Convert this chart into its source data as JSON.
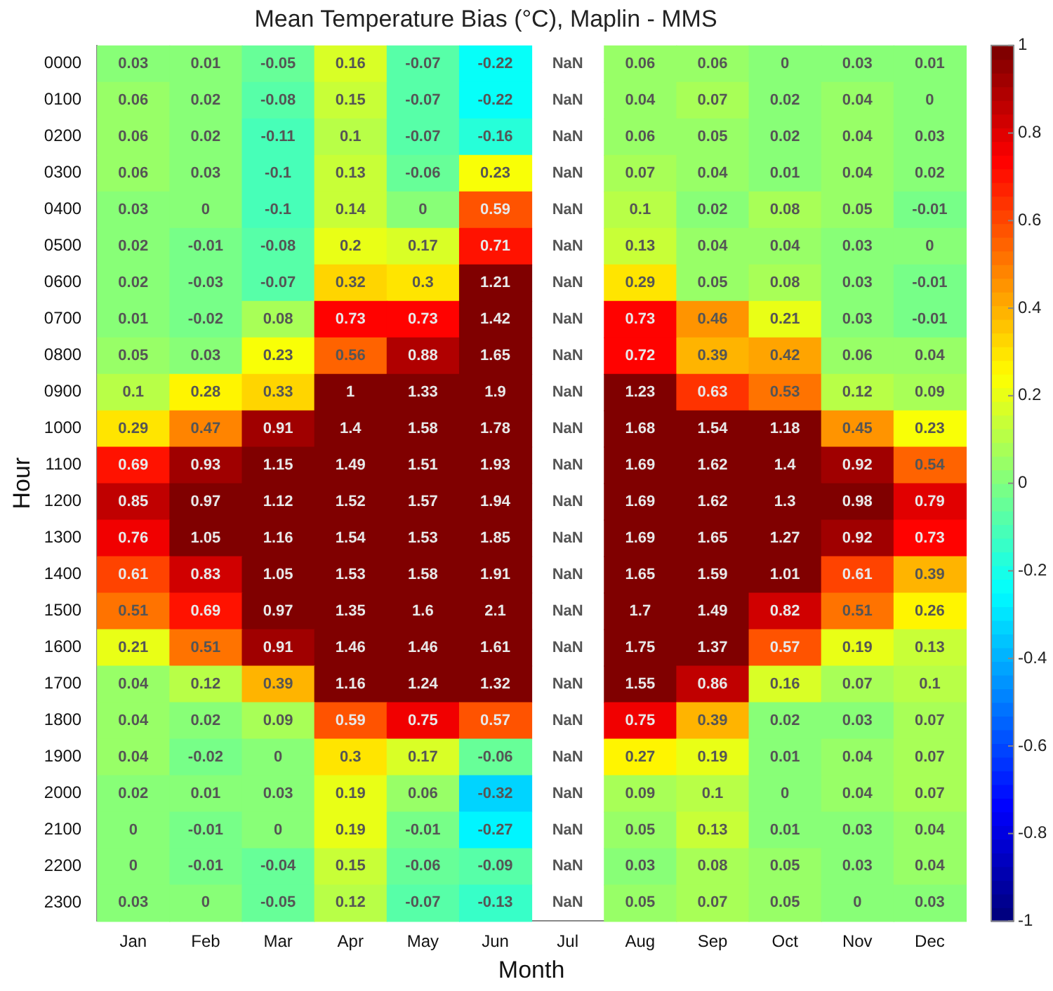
{
  "chart_data": {
    "type": "heatmap",
    "title": "Mean Temperature Bias (°C), Maplin - MMS",
    "xlabel": "Month",
    "ylabel": "Hour",
    "categories": [
      "Jan",
      "Feb",
      "Mar",
      "Apr",
      "May",
      "Jun",
      "Jul",
      "Aug",
      "Sep",
      "Oct",
      "Nov",
      "Dec"
    ],
    "y_categories": [
      "0000",
      "0100",
      "0200",
      "0300",
      "0400",
      "0500",
      "0600",
      "0700",
      "0800",
      "0900",
      "1000",
      "1100",
      "1200",
      "1300",
      "1400",
      "1500",
      "1600",
      "1700",
      "1800",
      "1900",
      "2000",
      "2100",
      "2200",
      "2300"
    ],
    "cells": [
      [
        0.03,
        0.01,
        -0.05,
        0.16,
        -0.07,
        -0.22,
        null,
        0.06,
        0.06,
        0,
        0.03,
        0.01
      ],
      [
        0.06,
        0.02,
        -0.08,
        0.15,
        -0.07,
        -0.22,
        null,
        0.04,
        0.07,
        0.02,
        0.04,
        0
      ],
      [
        0.06,
        0.02,
        -0.11,
        0.1,
        -0.07,
        -0.16,
        null,
        0.06,
        0.05,
        0.02,
        0.04,
        0.03
      ],
      [
        0.06,
        0.03,
        -0.1,
        0.13,
        -0.06,
        0.23,
        null,
        0.07,
        0.04,
        0.01,
        0.04,
        0.02
      ],
      [
        0.03,
        0,
        -0.1,
        0.14,
        0,
        0.59,
        null,
        0.1,
        0.02,
        0.08,
        0.05,
        -0.01
      ],
      [
        0.02,
        -0.01,
        -0.08,
        0.2,
        0.17,
        0.71,
        null,
        0.13,
        0.04,
        0.04,
        0.03,
        0
      ],
      [
        0.02,
        -0.03,
        -0.07,
        0.32,
        0.3,
        1.21,
        null,
        0.29,
        0.05,
        0.08,
        0.03,
        -0.01
      ],
      [
        0.01,
        -0.02,
        0.08,
        0.73,
        0.73,
        1.42,
        null,
        0.73,
        0.46,
        0.21,
        0.03,
        -0.01
      ],
      [
        0.05,
        0.03,
        0.23,
        0.56,
        0.88,
        1.65,
        null,
        0.72,
        0.39,
        0.42,
        0.06,
        0.04
      ],
      [
        0.1,
        0.28,
        0.33,
        1,
        1.33,
        1.9,
        null,
        1.23,
        0.63,
        0.53,
        0.12,
        0.09
      ],
      [
        0.29,
        0.47,
        0.91,
        1.4,
        1.58,
        1.78,
        null,
        1.68,
        1.54,
        1.18,
        0.45,
        0.23
      ],
      [
        0.69,
        0.93,
        1.15,
        1.49,
        1.51,
        1.93,
        null,
        1.69,
        1.62,
        1.4,
        0.92,
        0.54
      ],
      [
        0.85,
        0.97,
        1.12,
        1.52,
        1.57,
        1.94,
        null,
        1.69,
        1.62,
        1.3,
        0.98,
        0.79
      ],
      [
        0.76,
        1.05,
        1.16,
        1.54,
        1.53,
        1.85,
        null,
        1.69,
        1.65,
        1.27,
        0.92,
        0.73
      ],
      [
        0.61,
        0.83,
        1.05,
        1.53,
        1.58,
        1.91,
        null,
        1.65,
        1.59,
        1.01,
        0.61,
        0.39
      ],
      [
        0.51,
        0.69,
        0.97,
        1.35,
        1.6,
        2.1,
        null,
        1.7,
        1.49,
        0.82,
        0.51,
        0.26
      ],
      [
        0.21,
        0.51,
        0.91,
        1.46,
        1.46,
        1.61,
        null,
        1.75,
        1.37,
        0.57,
        0.19,
        0.13
      ],
      [
        0.04,
        0.12,
        0.39,
        1.16,
        1.24,
        1.32,
        null,
        1.55,
        0.86,
        0.16,
        0.07,
        0.1
      ],
      [
        0.04,
        0.02,
        0.09,
        0.59,
        0.75,
        0.57,
        null,
        0.75,
        0.39,
        0.02,
        0.03,
        0.07
      ],
      [
        0.04,
        -0.02,
        0,
        0.3,
        0.17,
        -0.06,
        null,
        0.27,
        0.19,
        0.01,
        0.04,
        0.07
      ],
      [
        0.02,
        0.01,
        0.03,
        0.19,
        0.06,
        -0.32,
        null,
        0.09,
        0.1,
        0,
        0.04,
        0.07
      ],
      [
        0,
        -0.01,
        0,
        0.19,
        -0.01,
        -0.27,
        null,
        0.05,
        0.13,
        0.01,
        0.03,
        0.04
      ],
      [
        0,
        -0.01,
        -0.04,
        0.15,
        -0.06,
        -0.09,
        null,
        0.03,
        0.08,
        0.05,
        0.03,
        0.04
      ],
      [
        0.03,
        0,
        -0.05,
        0.12,
        -0.07,
        -0.13,
        null,
        0.05,
        0.07,
        0.05,
        0,
        0.03
      ]
    ],
    "cell_labels": [
      [
        "0.03",
        "0.01",
        "-0.05",
        "0.16",
        "-0.07",
        "-0.22",
        "NaN",
        "0.06",
        "0.06",
        "0",
        "0.03",
        "0.01"
      ],
      [
        "0.06",
        "0.02",
        "-0.08",
        "0.15",
        "-0.07",
        "-0.22",
        "NaN",
        "0.04",
        "0.07",
        "0.02",
        "0.04",
        "0"
      ],
      [
        "0.06",
        "0.02",
        "-0.11",
        "0.1",
        "-0.07",
        "-0.16",
        "NaN",
        "0.06",
        "0.05",
        "0.02",
        "0.04",
        "0.03"
      ],
      [
        "0.06",
        "0.03",
        "-0.1",
        "0.13",
        "-0.06",
        "0.23",
        "NaN",
        "0.07",
        "0.04",
        "0.01",
        "0.04",
        "0.02"
      ],
      [
        "0.03",
        "0",
        "-0.1",
        "0.14",
        "0",
        "0.59",
        "NaN",
        "0.1",
        "0.02",
        "0.08",
        "0.05",
        "-0.01"
      ],
      [
        "0.02",
        "-0.01",
        "-0.08",
        "0.2",
        "0.17",
        "0.71",
        "NaN",
        "0.13",
        "0.04",
        "0.04",
        "0.03",
        "0"
      ],
      [
        "0.02",
        "-0.03",
        "-0.07",
        "0.32",
        "0.3",
        "1.21",
        "NaN",
        "0.29",
        "0.05",
        "0.08",
        "0.03",
        "-0.01"
      ],
      [
        "0.01",
        "-0.02",
        "0.08",
        "0.73",
        "0.73",
        "1.42",
        "NaN",
        "0.73",
        "0.46",
        "0.21",
        "0.03",
        "-0.01"
      ],
      [
        "0.05",
        "0.03",
        "0.23",
        "0.56",
        "0.88",
        "1.65",
        "NaN",
        "0.72",
        "0.39",
        "0.42",
        "0.06",
        "0.04"
      ],
      [
        "0.1",
        "0.28",
        "0.33",
        "1",
        "1.33",
        "1.9",
        "NaN",
        "1.23",
        "0.63",
        "0.53",
        "0.12",
        "0.09"
      ],
      [
        "0.29",
        "0.47",
        "0.91",
        "1.4",
        "1.58",
        "1.78",
        "NaN",
        "1.68",
        "1.54",
        "1.18",
        "0.45",
        "0.23"
      ],
      [
        "0.69",
        "0.93",
        "1.15",
        "1.49",
        "1.51",
        "1.93",
        "NaN",
        "1.69",
        "1.62",
        "1.4",
        "0.92",
        "0.54"
      ],
      [
        "0.85",
        "0.97",
        "1.12",
        "1.52",
        "1.57",
        "1.94",
        "NaN",
        "1.69",
        "1.62",
        "1.3",
        "0.98",
        "0.79"
      ],
      [
        "0.76",
        "1.05",
        "1.16",
        "1.54",
        "1.53",
        "1.85",
        "NaN",
        "1.69",
        "1.65",
        "1.27",
        "0.92",
        "0.73"
      ],
      [
        "0.61",
        "0.83",
        "1.05",
        "1.53",
        "1.58",
        "1.91",
        "NaN",
        "1.65",
        "1.59",
        "1.01",
        "0.61",
        "0.39"
      ],
      [
        "0.51",
        "0.69",
        "0.97",
        "1.35",
        "1.6",
        "2.1",
        "NaN",
        "1.7",
        "1.49",
        "0.82",
        "0.51",
        "0.26"
      ],
      [
        "0.21",
        "0.51",
        "0.91",
        "1.46",
        "1.46",
        "1.61",
        "NaN",
        "1.75",
        "1.37",
        "0.57",
        "0.19",
        "0.13"
      ],
      [
        "0.04",
        "0.12",
        "0.39",
        "1.16",
        "1.24",
        "1.32",
        "NaN",
        "1.55",
        "0.86",
        "0.16",
        "0.07",
        "0.1"
      ],
      [
        "0.04",
        "0.02",
        "0.09",
        "0.59",
        "0.75",
        "0.57",
        "NaN",
        "0.75",
        "0.39",
        "0.02",
        "0.03",
        "0.07"
      ],
      [
        "0.04",
        "-0.02",
        "0",
        "0.3",
        "0.17",
        "-0.06",
        "NaN",
        "0.27",
        "0.19",
        "0.01",
        "0.04",
        "0.07"
      ],
      [
        "0.02",
        "0.01",
        "0.03",
        "0.19",
        "0.06",
        "-0.32",
        "NaN",
        "0.09",
        "0.1",
        "0",
        "0.04",
        "0.07"
      ],
      [
        "0",
        "-0.01",
        "0",
        "0.19",
        "-0.01",
        "-0.27",
        "NaN",
        "0.05",
        "0.13",
        "0.01",
        "0.03",
        "0.04"
      ],
      [
        "0",
        "-0.01",
        "-0.04",
        "0.15",
        "-0.06",
        "-0.09",
        "NaN",
        "0.03",
        "0.08",
        "0.05",
        "0.03",
        "0.04"
      ],
      [
        "0.03",
        "0",
        "-0.05",
        "0.12",
        "-0.07",
        "-0.13",
        "NaN",
        "0.05",
        "0.07",
        "0.05",
        "0",
        "0.03"
      ]
    ],
    "clim": [
      -1,
      1
    ],
    "cticks": [
      -1,
      -0.8,
      -0.6,
      -0.4,
      -0.2,
      0,
      0.2,
      0.4,
      0.6,
      0.8,
      1
    ],
    "grid": false,
    "legend": false
  }
}
